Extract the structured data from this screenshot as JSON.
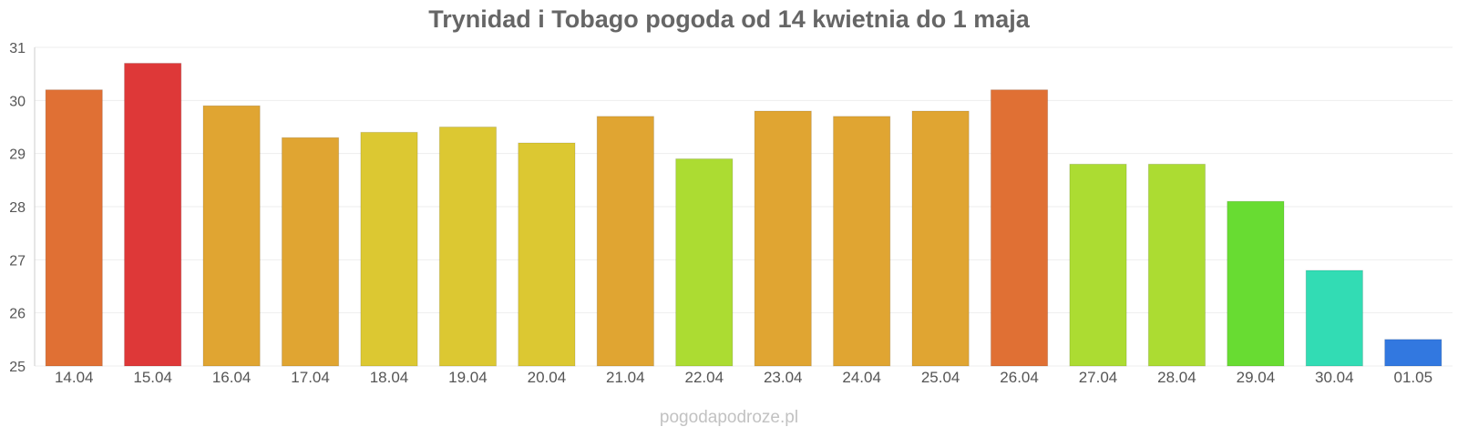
{
  "title": "Trynidad i Tobago pogoda od 14 kwietnia do 1 maja",
  "watermark": "pogodapodroze.pl",
  "chart_data": {
    "type": "bar",
    "title": "Trynidad i Tobago pogoda od 14 kwietnia do 1 maja",
    "xlabel": "",
    "ylabel": "",
    "categories": [
      "14.04",
      "15.04",
      "16.04",
      "17.04",
      "18.04",
      "19.04",
      "20.04",
      "21.04",
      "22.04",
      "23.04",
      "24.04",
      "25.04",
      "26.04",
      "27.04",
      "28.04",
      "29.04",
      "30.04",
      "01.05"
    ],
    "values": [
      30.2,
      30.7,
      29.9,
      29.3,
      29.4,
      29.5,
      29.2,
      29.7,
      28.9,
      29.8,
      29.7,
      29.8,
      30.2,
      28.8,
      28.8,
      28.1,
      26.8,
      25.5
    ],
    "colors": [
      "#e07034",
      "#de3838",
      "#e0a532",
      "#e0a532",
      "#dcc832",
      "#dcc832",
      "#dcc832",
      "#e0a532",
      "#acdc32",
      "#e0a532",
      "#e0a532",
      "#e0a532",
      "#e07034",
      "#acdc32",
      "#acdc32",
      "#68dc32",
      "#32dcb4",
      "#3278e0"
    ],
    "ylim": [
      25,
      31
    ],
    "yticks": [
      25,
      26,
      27,
      28,
      29,
      30,
      31
    ],
    "grid": true,
    "legend": "none"
  }
}
